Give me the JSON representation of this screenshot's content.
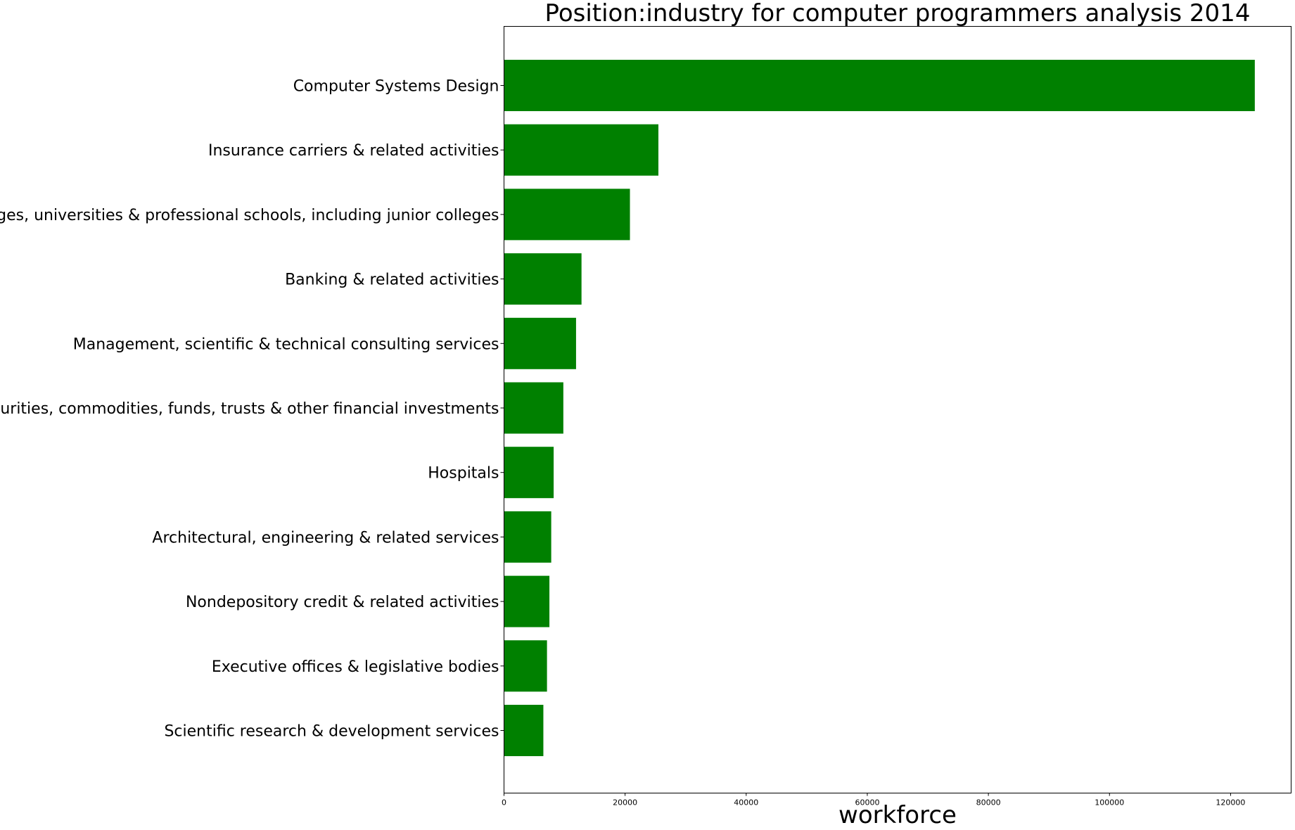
{
  "chart_data": {
    "type": "bar",
    "orientation": "horizontal",
    "title": "Position:industry for computer programmers analysis 2014",
    "xlabel": "workforce",
    "ylabel": "",
    "categories": [
      "Computer Systems Design",
      "Insurance carriers & related activities",
      "Colleges, universities & professional schools, including junior colleges",
      "Banking & related activities",
      "Management, scientific & technical consulting services",
      "Securities, commodities, funds, trusts & other financial investments",
      "Hospitals",
      "Architectural, engineering & related services",
      "Nondepository credit & related activities",
      "Executive offices & legislative bodies",
      "Scientific research & development services"
    ],
    "values": [
      124000,
      25500,
      20800,
      12800,
      11900,
      9800,
      8200,
      7800,
      7500,
      7100,
      6500
    ],
    "xlim": [
      0,
      130000
    ],
    "xticks": [
      0,
      20000,
      40000,
      60000,
      80000,
      100000,
      120000
    ],
    "xtick_labels": [
      "0",
      "20000",
      "40000",
      "60000",
      "80000",
      "100000",
      "120000"
    ],
    "bar_color": "#008000",
    "grid": false,
    "legend": null
  }
}
